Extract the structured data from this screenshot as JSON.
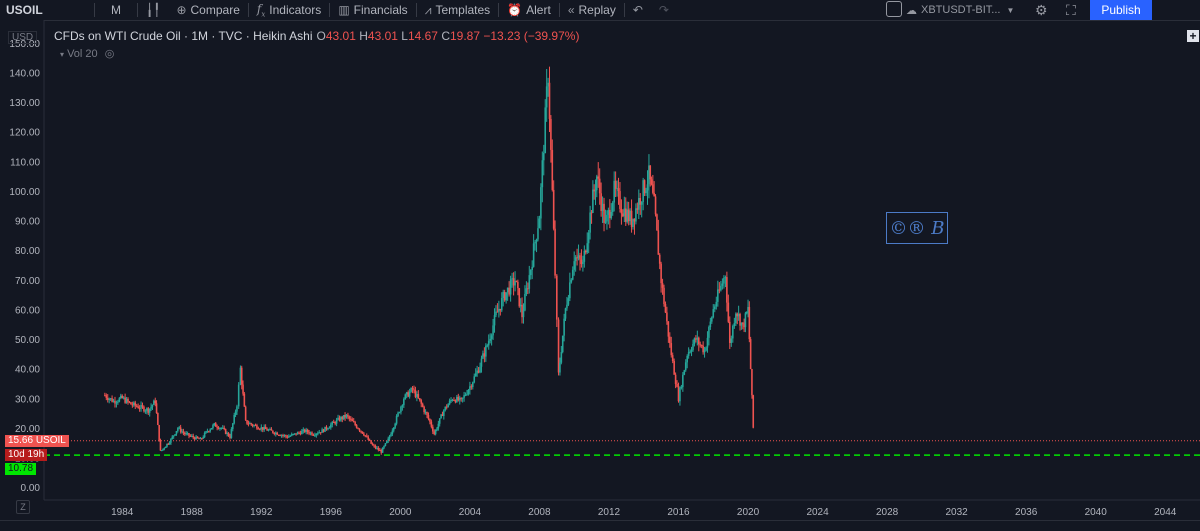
{
  "toolbar": {
    "symbol": "USOIL",
    "interval": "M",
    "compare": "Compare",
    "indicators": "Indicators",
    "financials": "Financials",
    "templates": "Templates",
    "alert": "Alert",
    "replay": "Replay",
    "account": "XBTUSDT-BIT...",
    "publish": "Publish"
  },
  "legend": {
    "title": "CFDs on WTI Crude Oil · 1M · TVC · Heikin Ashi",
    "o_label": "O",
    "o": "43.01",
    "h_label": "H",
    "h": "43.01",
    "l_label": "L",
    "l": "14.67",
    "c_label": "C",
    "c": "19.87",
    "change": "−13.23 (−39.97%)",
    "volume": "Vol 20"
  },
  "currency": "USD",
  "logo_text": "©® B",
  "price_tags": {
    "last": "15.66",
    "last_symbol": "USOIL",
    "countdown": "10d 19h",
    "support": "10.78"
  },
  "colors": {
    "up": "#26a69a",
    "down": "#ef5350",
    "support_line": "#00e600",
    "last_price_line": "#ef5350",
    "background": "#131722",
    "publish": "#2962ff"
  },
  "chart_data": {
    "type": "line",
    "style": "Heikin Ashi monthly candles",
    "title": "CFDs on WTI Crude Oil · 1M · TVC · Heikin Ashi",
    "xlabel": "",
    "ylabel": "",
    "ylim": [
      -3,
      155
    ],
    "xlim": [
      1979.5,
      2046
    ],
    "y_ticks": [
      "0.00",
      "10.00",
      "20.00",
      "30.00",
      "40.00",
      "50.00",
      "60.00",
      "70.00",
      "80.00",
      "90.00",
      "100.00",
      "110.00",
      "120.00",
      "130.00",
      "140.00",
      "150.00"
    ],
    "x_ticks": [
      "1984",
      "1988",
      "1992",
      "1996",
      "2000",
      "2004",
      "2008",
      "2012",
      "2016",
      "2020",
      "2024",
      "2028",
      "2032",
      "2036",
      "2040",
      "2044"
    ],
    "series": [
      {
        "x": [
          1983.0,
          1983.5,
          1984.0,
          1984.5,
          1985.0,
          1985.5,
          1985.9,
          1986.2,
          1986.5,
          1986.8,
          1987.2,
          1987.6,
          1988.0,
          1988.5,
          1988.9,
          1989.3,
          1989.7,
          1990.2,
          1990.6,
          1990.8,
          1991.1,
          1991.5,
          1992.0,
          1992.5,
          1993.0,
          1993.5,
          1994.0,
          1994.5,
          1995.0,
          1995.5,
          1996.0,
          1996.5,
          1996.9,
          1997.4,
          1997.9,
          1998.4,
          1998.9,
          1999.3,
          1999.7,
          2000.2,
          2000.7,
          2001.2,
          2001.7,
          2001.95,
          2002.5,
          2003.0,
          2003.5,
          2004.0,
          2004.5,
          2005.0,
          2005.5,
          2006.0,
          2006.6,
          2007.0,
          2007.5,
          2008.0,
          2008.5,
          2008.9,
          2009.1,
          2009.5,
          2010.0,
          2010.5,
          2011.0,
          2011.3,
          2011.8,
          2012.3,
          2012.8,
          2013.3,
          2013.8,
          2014.3,
          2014.6,
          2015.0,
          2015.5,
          2016.0,
          2016.5,
          2017.0,
          2017.5,
          2018.0,
          2018.7,
          2018.95,
          2019.3,
          2019.7,
          2020.0,
          2020.3
        ],
        "values": [
          31,
          29,
          30,
          28,
          27,
          26,
          29,
          12,
          14,
          16,
          20,
          18,
          17,
          16,
          19,
          21,
          20,
          17,
          28,
          40,
          22,
          21,
          20,
          19,
          18,
          17,
          18,
          19,
          18,
          19,
          21,
          23,
          24,
          21,
          18,
          14,
          12,
          16,
          22,
          30,
          33,
          28,
          22,
          18,
          26,
          30,
          29,
          34,
          40,
          48,
          58,
          65,
          70,
          58,
          74,
          92,
          140,
          72,
          38,
          60,
          78,
          75,
          95,
          105,
          88,
          100,
          94,
          90,
          98,
          105,
          95,
          70,
          48,
          30,
          45,
          50,
          46,
          60,
          72,
          48,
          60,
          54,
          60,
          20
        ]
      }
    ],
    "horizontal_lines": [
      {
        "label": "USOIL",
        "value": 15.66,
        "style": "dotted red"
      },
      {
        "label": "",
        "value": 10.78,
        "style": "dashed green"
      }
    ]
  }
}
